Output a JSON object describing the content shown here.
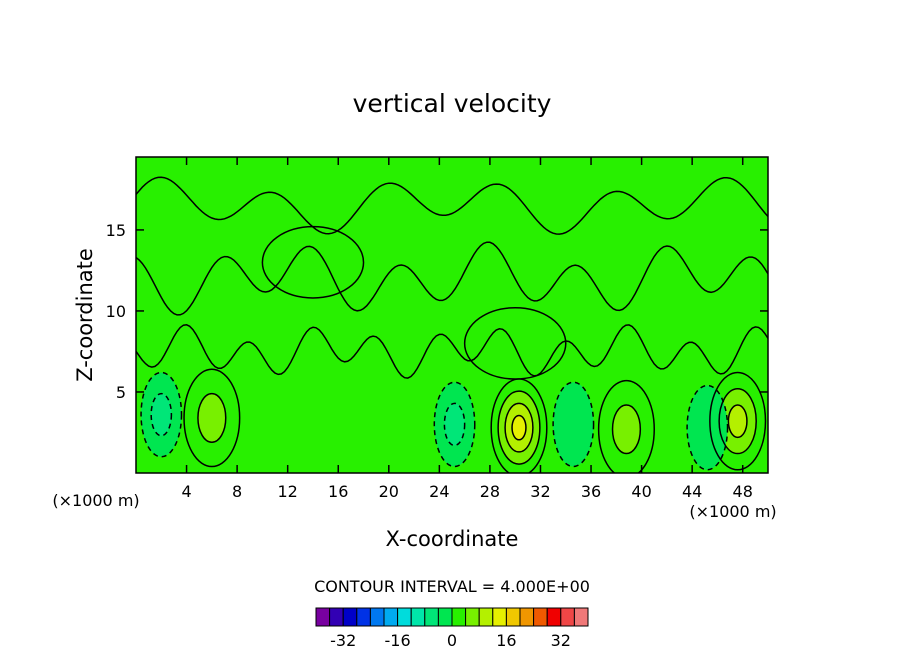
{
  "chart_data": {
    "type": "heatmap",
    "subtype": "filled contour",
    "title": "vertical velocity",
    "xlabel": "X-coordinate",
    "ylabel": "Z-coordinate",
    "x_unit_label": "(×1000 m)",
    "y_unit_label": "(×1000 m)",
    "xlim": [
      0,
      50
    ],
    "ylim": [
      0,
      19.5
    ],
    "x_ticks": [
      4,
      8,
      12,
      16,
      20,
      24,
      28,
      32,
      36,
      40,
      44,
      48
    ],
    "y_ticks": [
      5,
      10,
      15
    ],
    "contour_interval_text": "CONTOUR INTERVAL =  4.000E+00",
    "contour_interval": 4,
    "colorbar": {
      "levels": [
        -40,
        -36,
        -32,
        -28,
        -24,
        -20,
        -16,
        -12,
        -8,
        -4,
        0,
        4,
        8,
        12,
        16,
        20,
        24,
        28,
        32,
        36,
        40
      ],
      "tick_values": [
        -32,
        -16,
        0,
        16,
        32
      ],
      "tick_labels": [
        "-32",
        "-16",
        "0",
        "16",
        "32"
      ],
      "colors": [
        "#7800a0",
        "#3200b4",
        "#0000c8",
        "#0032e6",
        "#0078f0",
        "#00aaf0",
        "#00dcdc",
        "#00e6aa",
        "#00e678",
        "#00e650",
        "#28f000",
        "#78f000",
        "#b4f000",
        "#e6f000",
        "#f0c800",
        "#f09600",
        "#f05a00",
        "#f00000",
        "#f04646",
        "#f07878"
      ]
    },
    "features": [
      {
        "kind": "background",
        "value": 0
      },
      {
        "kind": "updraft",
        "x": 6,
        "z": 3.4,
        "peak": 8
      },
      {
        "kind": "updraft",
        "x": 30.3,
        "z": 2.8,
        "peak": 16
      },
      {
        "kind": "updraft",
        "x": 38.8,
        "z": 2.7,
        "peak": 8
      },
      {
        "kind": "updraft",
        "x": 47.6,
        "z": 3.2,
        "peak": 12
      },
      {
        "kind": "downdraft",
        "x": 2.0,
        "z": 3.6,
        "peak": -8
      },
      {
        "kind": "downdraft",
        "x": 25.2,
        "z": 3.0,
        "peak": -8
      },
      {
        "kind": "downdraft",
        "x": 34.6,
        "z": 3.0,
        "peak": -4
      },
      {
        "kind": "downdraft",
        "x": 45.2,
        "z": 2.8,
        "peak": -4
      },
      {
        "kind": "updraft-band",
        "x": 14,
        "z": 13,
        "peak": 4
      },
      {
        "kind": "updraft-band",
        "x": 30,
        "z": 8,
        "peak": 4
      }
    ]
  }
}
